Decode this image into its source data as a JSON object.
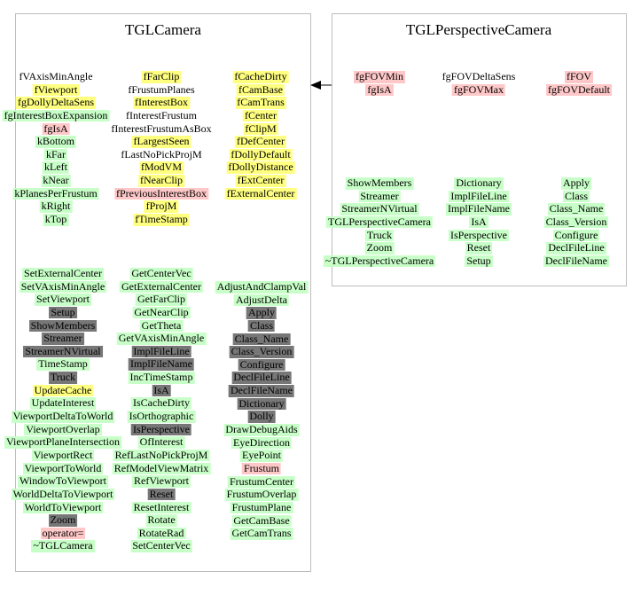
{
  "colors": {
    "yellow": "#ffff80",
    "pink": "#ffc8c8",
    "green": "#c8ffc8",
    "gray": "#777777",
    "border": "#bdbdbd"
  },
  "tglcamera": {
    "title": "TGLCamera",
    "members": [
      [
        {
          "text": "fVAxisMinAngle",
          "c": "n"
        },
        {
          "text": "fViewport",
          "c": "y"
        },
        {
          "text": "fgDollyDeltaSens",
          "c": "y"
        },
        {
          "text": "fgInterestBoxExpansion",
          "c": "g"
        },
        {
          "text": "fgIsA",
          "c": "p"
        },
        {
          "text": "kBottom",
          "c": "g"
        },
        {
          "text": "kFar",
          "c": "g"
        },
        {
          "text": "kLeft",
          "c": "g"
        },
        {
          "text": "kNear",
          "c": "g"
        },
        {
          "text": "kPlanesPerFrustum",
          "c": "g"
        },
        {
          "text": "kRight",
          "c": "g"
        },
        {
          "text": "kTop",
          "c": "g"
        }
      ],
      [
        {
          "text": "fFarClip",
          "c": "y"
        },
        {
          "text": "fFrustumPlanes",
          "c": "n"
        },
        {
          "text": "fInterestBox",
          "c": "y"
        },
        {
          "text": "fInterestFrustum",
          "c": "n"
        },
        {
          "text": "fInterestFrustumAsBox",
          "c": "n"
        },
        {
          "text": "fLargestSeen",
          "c": "y"
        },
        {
          "text": "fLastNoPickProjM",
          "c": "n"
        },
        {
          "text": "fModVM",
          "c": "y"
        },
        {
          "text": "fNearClip",
          "c": "y"
        },
        {
          "text": "fPreviousInterestBox",
          "c": "p"
        },
        {
          "text": "fProjM",
          "c": "y"
        },
        {
          "text": "fTimeStamp",
          "c": "y"
        }
      ],
      [
        {
          "text": "fCacheDirty",
          "c": "y"
        },
        {
          "text": "fCamBase",
          "c": "y"
        },
        {
          "text": "fCamTrans",
          "c": "y"
        },
        {
          "text": "fCenter",
          "c": "y"
        },
        {
          "text": "fClipM",
          "c": "y"
        },
        {
          "text": "fDefCenter",
          "c": "y"
        },
        {
          "text": "fDollyDefault",
          "c": "y"
        },
        {
          "text": "fDollyDistance",
          "c": "y"
        },
        {
          "text": "fExtCenter",
          "c": "y"
        },
        {
          "text": "fExternalCenter",
          "c": "y"
        }
      ]
    ],
    "methods": [
      [
        {
          "text": "SetExternalCenter",
          "c": "g"
        },
        {
          "text": "SetVAxisMinAngle",
          "c": "g"
        },
        {
          "text": "SetViewport",
          "c": "g"
        },
        {
          "text": "Setup",
          "c": "k"
        },
        {
          "text": "ShowMembers",
          "c": "k"
        },
        {
          "text": "Streamer",
          "c": "k"
        },
        {
          "text": "StreamerNVirtual",
          "c": "k"
        },
        {
          "text": "TimeStamp",
          "c": "g"
        },
        {
          "text": "Truck",
          "c": "k"
        },
        {
          "text": "UpdateCache",
          "c": "y"
        },
        {
          "text": "UpdateInterest",
          "c": "g"
        },
        {
          "text": "ViewportDeltaToWorld",
          "c": "g"
        },
        {
          "text": "ViewportOverlap",
          "c": "g"
        },
        {
          "text": "ViewportPlaneIntersection",
          "c": "g"
        },
        {
          "text": "ViewportRect",
          "c": "g"
        },
        {
          "text": "ViewportToWorld",
          "c": "g"
        },
        {
          "text": "WindowToViewport",
          "c": "g"
        },
        {
          "text": "WorldDeltaToViewport",
          "c": "g"
        },
        {
          "text": "WorldToViewport",
          "c": "g"
        },
        {
          "text": "Zoom",
          "c": "k"
        },
        {
          "text": "operator=",
          "c": "p"
        },
        {
          "text": "~TGLCamera",
          "c": "g"
        }
      ],
      [
        {
          "text": "GetCenterVec",
          "c": "g"
        },
        {
          "text": "GetExternalCenter",
          "c": "g"
        },
        {
          "text": "GetFarClip",
          "c": "g"
        },
        {
          "text": "GetNearClip",
          "c": "g"
        },
        {
          "text": "GetTheta",
          "c": "g"
        },
        {
          "text": "GetVAxisMinAngle",
          "c": "g"
        },
        {
          "text": "ImplFileLine",
          "c": "k"
        },
        {
          "text": "ImplFileName",
          "c": "k"
        },
        {
          "text": "IncTimeStamp",
          "c": "g"
        },
        {
          "text": "IsA",
          "c": "k"
        },
        {
          "text": "IsCacheDirty",
          "c": "g"
        },
        {
          "text": "IsOrthographic",
          "c": "g"
        },
        {
          "text": "IsPerspective",
          "c": "k"
        },
        {
          "text": "OfInterest",
          "c": "g"
        },
        {
          "text": "RefLastNoPickProjM",
          "c": "g"
        },
        {
          "text": "RefModelViewMatrix",
          "c": "g"
        },
        {
          "text": "RefViewport",
          "c": "g"
        },
        {
          "text": "Reset",
          "c": "k"
        },
        {
          "text": "ResetInterest",
          "c": "g"
        },
        {
          "text": "Rotate",
          "c": "g"
        },
        {
          "text": "RotateRad",
          "c": "g"
        },
        {
          "text": "SetCenterVec",
          "c": "g"
        }
      ],
      [
        {
          "text": "AdjustAndClampVal",
          "c": "g"
        },
        {
          "text": "AdjustDelta",
          "c": "g"
        },
        {
          "text": "Apply",
          "c": "k"
        },
        {
          "text": "Class",
          "c": "k"
        },
        {
          "text": "Class_Name",
          "c": "k"
        },
        {
          "text": "Class_Version",
          "c": "k"
        },
        {
          "text": "Configure",
          "c": "k"
        },
        {
          "text": "DeclFileLine",
          "c": "k"
        },
        {
          "text": "DeclFileName",
          "c": "k"
        },
        {
          "text": "Dictionary",
          "c": "k"
        },
        {
          "text": "Dolly",
          "c": "k"
        },
        {
          "text": "DrawDebugAids",
          "c": "g"
        },
        {
          "text": "EyeDirection",
          "c": "g"
        },
        {
          "text": "EyePoint",
          "c": "g"
        },
        {
          "text": "Frustum",
          "c": "p"
        },
        {
          "text": "FrustumCenter",
          "c": "g"
        },
        {
          "text": "FrustumOverlap",
          "c": "g"
        },
        {
          "text": "FrustumPlane",
          "c": "g"
        },
        {
          "text": "GetCamBase",
          "c": "g"
        },
        {
          "text": "GetCamTrans",
          "c": "g"
        }
      ]
    ]
  },
  "tglperspectivecamera": {
    "title": "TGLPerspectiveCamera",
    "members": [
      [
        {
          "text": "fgFOVMin",
          "c": "p"
        },
        {
          "text": "fgIsA",
          "c": "p"
        }
      ],
      [
        {
          "text": "fgFOVDeltaSens",
          "c": "n"
        },
        {
          "text": "fgFOVMax",
          "c": "p"
        }
      ],
      [
        {
          "text": "fFOV",
          "c": "p"
        },
        {
          "text": "fgFOVDefault",
          "c": "p"
        }
      ]
    ],
    "methods": [
      [
        {
          "text": "ShowMembers",
          "c": "g"
        },
        {
          "text": "Streamer",
          "c": "g"
        },
        {
          "text": "StreamerNVirtual",
          "c": "g"
        },
        {
          "text": "TGLPerspectiveCamera",
          "c": "g"
        },
        {
          "text": "Truck",
          "c": "g"
        },
        {
          "text": "Zoom",
          "c": "g"
        },
        {
          "text": "~TGLPerspectiveCamera",
          "c": "g"
        }
      ],
      [
        {
          "text": "Dictionary",
          "c": "g"
        },
        {
          "text": "ImplFileLine",
          "c": "g"
        },
        {
          "text": "ImplFileName",
          "c": "g"
        },
        {
          "text": "IsA",
          "c": "g"
        },
        {
          "text": "IsPerspective",
          "c": "g"
        },
        {
          "text": "Reset",
          "c": "g"
        },
        {
          "text": "Setup",
          "c": "g"
        }
      ],
      [
        {
          "text": "Apply",
          "c": "g"
        },
        {
          "text": "Class",
          "c": "g"
        },
        {
          "text": "Class_Name",
          "c": "g"
        },
        {
          "text": "Class_Version",
          "c": "g"
        },
        {
          "text": "Configure",
          "c": "g"
        },
        {
          "text": "DeclFileLine",
          "c": "g"
        },
        {
          "text": "DeclFileName",
          "c": "g"
        }
      ]
    ]
  }
}
